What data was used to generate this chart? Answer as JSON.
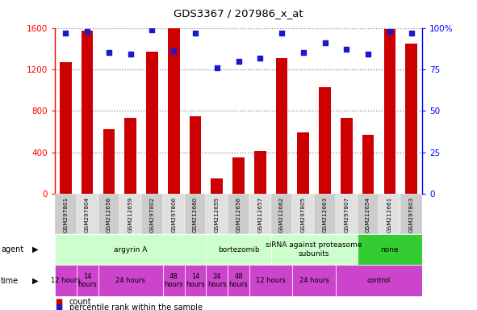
{
  "title": "GDS3367 / 207986_x_at",
  "samples": [
    "GSM297801",
    "GSM297804",
    "GSM212658",
    "GSM212659",
    "GSM297802",
    "GSM297806",
    "GSM212660",
    "GSM212655",
    "GSM212656",
    "GSM212657",
    "GSM212662",
    "GSM297805",
    "GSM212663",
    "GSM297807",
    "GSM212654",
    "GSM212661",
    "GSM297803"
  ],
  "counts": [
    1270,
    1570,
    620,
    730,
    1370,
    1600,
    750,
    150,
    350,
    410,
    1310,
    590,
    1030,
    730,
    570,
    1590,
    1450
  ],
  "percentiles": [
    97,
    98,
    85,
    84,
    99,
    86,
    97,
    76,
    80,
    82,
    97,
    85,
    91,
    87,
    84,
    98,
    97
  ],
  "ylim_left": [
    0,
    1600
  ],
  "ylim_right": [
    0,
    100
  ],
  "yticks_left": [
    0,
    400,
    800,
    1200,
    1600
  ],
  "yticks_right": [
    0,
    25,
    50,
    75,
    100
  ],
  "bar_color": "#cc0000",
  "dot_color": "#1a1acc",
  "agent_groups": [
    {
      "label": "argyrin A",
      "start": 0,
      "end": 7,
      "color": "#ccffcc"
    },
    {
      "label": "bortezomib",
      "start": 7,
      "end": 10,
      "color": "#ccffcc"
    },
    {
      "label": "siRNA against proteasome\nsubunits",
      "start": 10,
      "end": 14,
      "color": "#ccffcc"
    },
    {
      "label": "none",
      "start": 14,
      "end": 17,
      "color": "#33cc33"
    }
  ],
  "time_groups": [
    {
      "label": "12 hours",
      "start": 0,
      "end": 1,
      "color": "#dd66dd"
    },
    {
      "label": "14\nhours",
      "start": 1,
      "end": 2,
      "color": "#dd66dd"
    },
    {
      "label": "24 hours",
      "start": 2,
      "end": 5,
      "color": "#dd66dd"
    },
    {
      "label": "48\nhours",
      "start": 5,
      "end": 6,
      "color": "#dd66dd"
    },
    {
      "label": "14\nhours",
      "start": 6,
      "end": 7,
      "color": "#dd66dd"
    },
    {
      "label": "24\nhours",
      "start": 7,
      "end": 8,
      "color": "#dd66dd"
    },
    {
      "label": "48\nhours",
      "start": 8,
      "end": 9,
      "color": "#dd66dd"
    },
    {
      "label": "12 hours",
      "start": 9,
      "end": 11,
      "color": "#dd66dd"
    },
    {
      "label": "24 hours",
      "start": 11,
      "end": 13,
      "color": "#dd66dd"
    },
    {
      "label": "control",
      "start": 13,
      "end": 17,
      "color": "#dd66dd"
    }
  ],
  "legend_items": [
    {
      "label": "count",
      "color": "#cc0000"
    },
    {
      "label": "percentile rank within the sample",
      "color": "#1a1acc"
    }
  ],
  "bg_color": "#ffffff",
  "grid_color": "#888888"
}
